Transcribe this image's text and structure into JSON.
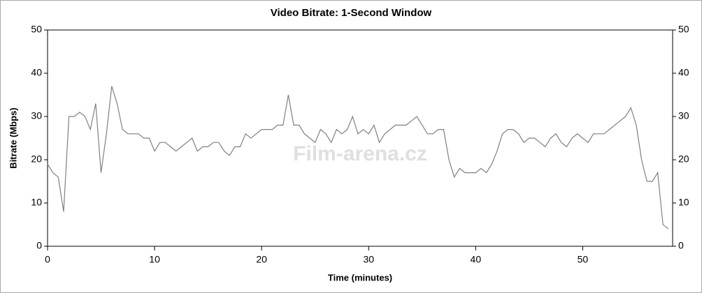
{
  "chart_data": {
    "type": "line",
    "title": "Video Bitrate: 1-Second Window",
    "x_label": "Time (minutes)",
    "y_label": "Bitrate (Mbps)",
    "watermark": "Film-arena.cz",
    "xlim": [
      0,
      58.4
    ],
    "xticks": [
      0,
      10,
      20,
      30,
      40,
      50
    ],
    "ylim": [
      0,
      50
    ],
    "yticks": [
      0,
      10,
      20,
      30,
      40,
      50
    ],
    "right_axis_ticks": true,
    "grid": false,
    "series": [
      {
        "name": "Bitrate",
        "color": "#808080",
        "x": [
          0,
          0.5,
          1,
          1.5,
          2,
          2.5,
          3,
          3.5,
          4,
          4.5,
          5,
          5.5,
          6,
          6.5,
          7,
          7.5,
          8,
          8.5,
          9,
          9.5,
          10,
          10.5,
          11,
          11.5,
          12,
          12.5,
          13,
          13.5,
          14,
          14.5,
          15,
          15.5,
          16,
          16.5,
          17,
          17.5,
          18,
          18.5,
          19,
          19.5,
          20,
          20.5,
          21,
          21.5,
          22,
          22.5,
          23,
          23.5,
          24,
          24.5,
          25,
          25.5,
          26,
          26.5,
          27,
          27.5,
          28,
          28.5,
          29,
          29.5,
          30,
          30.5,
          31,
          31.5,
          32,
          32.5,
          33,
          33.5,
          34,
          34.5,
          35,
          35.5,
          36,
          36.5,
          37,
          37.5,
          38,
          38.5,
          39,
          39.5,
          40,
          40.5,
          41,
          41.5,
          42,
          42.5,
          43,
          43.5,
          44,
          44.5,
          45,
          45.5,
          46,
          46.5,
          47,
          47.5,
          48,
          48.5,
          49,
          49.5,
          50,
          50.5,
          51,
          51.5,
          52,
          52.5,
          53,
          53.5,
          54,
          54.5,
          55,
          55.5,
          56,
          56.5,
          57,
          57.5,
          58
        ],
        "values": [
          19,
          17,
          16,
          8,
          30,
          30,
          31,
          30,
          27,
          33,
          17,
          26,
          37,
          33,
          27,
          26,
          26,
          26,
          25,
          25,
          22,
          24,
          24,
          23,
          22,
          23,
          24,
          25,
          22,
          23,
          23,
          24,
          24,
          22,
          21,
          23,
          23,
          26,
          25,
          26,
          27,
          27,
          27,
          28,
          28,
          35,
          28,
          28,
          26,
          25,
          24,
          27,
          26,
          24,
          27,
          26,
          27,
          30,
          26,
          27,
          26,
          28,
          24,
          26,
          27,
          28,
          28,
          28,
          29,
          30,
          28,
          26,
          26,
          27,
          27,
          20,
          16,
          18,
          17,
          17,
          17,
          18,
          17,
          19,
          22,
          26,
          27,
          27,
          26,
          24,
          25,
          25,
          24,
          23,
          25,
          26,
          24,
          23,
          25,
          26,
          25,
          24,
          26,
          26,
          26,
          27,
          28,
          29,
          30,
          32,
          28,
          20,
          15,
          15,
          17,
          5,
          4
        ]
      }
    ]
  }
}
